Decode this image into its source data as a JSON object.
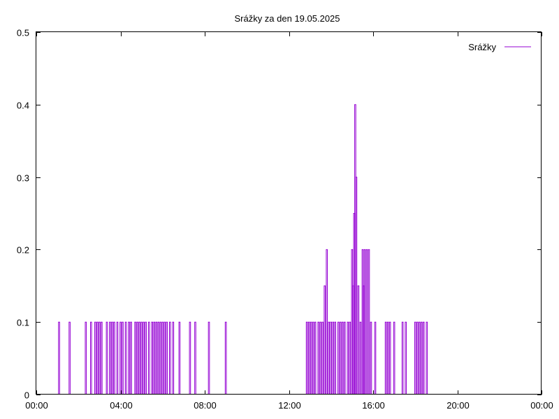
{
  "chart_data": {
    "type": "line",
    "title": "Srážky za den 19.05.2025",
    "xlabel": "",
    "ylabel": "",
    "xlim_hours": [
      0,
      24
    ],
    "ylim": [
      0,
      0.5
    ],
    "x_ticks": [
      "00:00",
      "04:00",
      "08:00",
      "12:00",
      "16:00",
      "20:00",
      "00:00"
    ],
    "y_ticks": [
      "0",
      "0.1",
      "0.2",
      "0.3",
      "0.4",
      "0.5"
    ],
    "grid": false,
    "legend_position": "top-right",
    "series": [
      {
        "name": "Srážky",
        "color": "#9400d3",
        "x_hours": [
          1.08,
          1.58,
          2.35,
          2.6,
          2.8,
          2.9,
          3.0,
          3.1,
          3.35,
          3.5,
          3.6,
          3.7,
          3.85,
          4.0,
          4.1,
          4.25,
          4.4,
          4.5,
          4.7,
          4.8,
          4.9,
          5.0,
          5.1,
          5.2,
          5.35,
          5.5,
          5.6,
          5.7,
          5.8,
          5.9,
          6.0,
          6.1,
          6.2,
          6.35,
          6.5,
          6.8,
          7.3,
          7.55,
          8.2,
          9.0,
          12.85,
          12.95,
          13.05,
          13.15,
          13.25,
          13.4,
          13.5,
          13.6,
          13.7,
          13.8,
          13.9,
          14.0,
          14.1,
          14.2,
          14.35,
          14.45,
          14.55,
          14.65,
          14.8,
          14.9,
          15.0,
          15.05,
          15.1,
          15.15,
          15.2,
          15.3,
          15.4,
          15.5,
          15.55,
          15.6,
          15.7,
          15.8,
          15.9,
          16.1,
          16.6,
          16.7,
          16.8,
          17.0,
          17.4,
          17.55,
          18.0,
          18.1,
          18.2,
          18.3,
          18.4,
          18.55
        ],
        "values": [
          0.1,
          0.1,
          0.1,
          0.1,
          0.1,
          0.1,
          0.1,
          0.1,
          0.1,
          0.1,
          0.1,
          0.1,
          0.1,
          0.1,
          0.1,
          0.1,
          0.1,
          0.1,
          0.1,
          0.1,
          0.1,
          0.1,
          0.1,
          0.1,
          0.1,
          0.1,
          0.1,
          0.1,
          0.1,
          0.1,
          0.1,
          0.1,
          0.1,
          0.1,
          0.1,
          0.1,
          0.1,
          0.1,
          0.1,
          0.1,
          0.1,
          0.1,
          0.1,
          0.1,
          0.1,
          0.1,
          0.1,
          0.1,
          0.15,
          0.2,
          0.1,
          0.1,
          0.1,
          0.1,
          0.1,
          0.1,
          0.1,
          0.1,
          0.1,
          0.1,
          0.2,
          0.15,
          0.25,
          0.4,
          0.3,
          0.15,
          0.1,
          0.2,
          0.15,
          0.2,
          0.2,
          0.2,
          0.1,
          0.1,
          0.1,
          0.1,
          0.1,
          0.1,
          0.1,
          0.1,
          0.1,
          0.1,
          0.1,
          0.1,
          0.1,
          0.1
        ]
      }
    ]
  }
}
